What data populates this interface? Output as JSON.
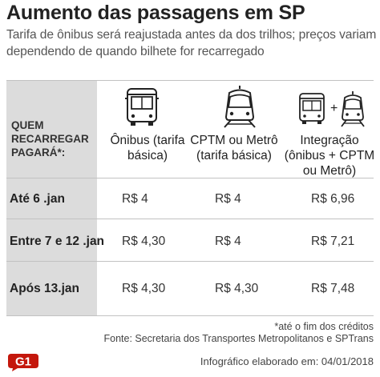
{
  "header": {
    "title": "Aumento das passagens em SP",
    "subtitle": "Tarifa de ônibus será reajustada antes da dos trilhos; preços variam dependendo de quando bilhete for recarregado"
  },
  "table": {
    "label_header": "QUEM RECARREGAR PAGARÁ*:",
    "columns": [
      {
        "label": "Ônibus (tarifa básica)",
        "icon": "bus-icon"
      },
      {
        "label": "CPTM ou Metrô (tarifa básica)",
        "icon": "train-icon"
      },
      {
        "label": "Integração (ônibus + CPTM ou Metrô)",
        "icon": "bus-plus-train-icon"
      }
    ],
    "integration_plus": "+",
    "rows": [
      {
        "label": "Até 6 .jan",
        "values": [
          "R$ 4",
          "R$ 4",
          "R$ 6,96"
        ]
      },
      {
        "label": "Entre 7 e 12 .jan",
        "values": [
          "R$ 4,30",
          "R$ 4",
          "R$ 7,21"
        ]
      },
      {
        "label": "Após 13.jan",
        "values": [
          "R$ 4,30",
          "R$ 4,30",
          "R$ 7,48"
        ]
      }
    ]
  },
  "footer": {
    "note": "*até o fim dos créditos",
    "source": "Fonte: Secretaria dos Transportes Metropolitanos e SPTrans",
    "brand": "G1",
    "credit": "Infográfico elaborado em: 04/01/2018"
  },
  "colors": {
    "label_column_bg": "#dcdcdc",
    "brand_red": "#c4170c",
    "title_text": "#222222"
  }
}
